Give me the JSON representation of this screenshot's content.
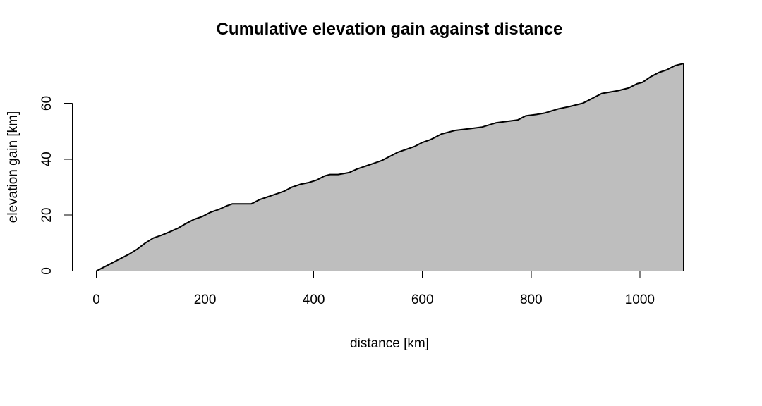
{
  "chart_data": {
    "type": "area",
    "title": "Cumulative elevation gain against distance",
    "xlabel": "distance [km]",
    "ylabel": "elevation gain [km]",
    "xlim": [
      0,
      1080
    ],
    "ylim": [
      0,
      75
    ],
    "x_ticks": [
      0,
      200,
      400,
      600,
      800,
      1000
    ],
    "y_ticks": [
      0,
      20,
      40,
      60
    ],
    "grid": false,
    "fill_color": "#bebebe",
    "line_color": "#000000",
    "x": [
      0,
      15,
      30,
      45,
      60,
      75,
      90,
      105,
      120,
      135,
      150,
      165,
      180,
      195,
      210,
      225,
      240,
      250,
      265,
      285,
      300,
      315,
      330,
      345,
      360,
      375,
      390,
      405,
      420,
      430,
      445,
      465,
      480,
      495,
      510,
      525,
      540,
      555,
      570,
      585,
      600,
      615,
      635,
      660,
      690,
      710,
      735,
      775,
      790,
      810,
      825,
      850,
      870,
      895,
      910,
      930,
      960,
      980,
      995,
      1005,
      1020,
      1035,
      1050,
      1065,
      1080
    ],
    "y": [
      0,
      1.5,
      3,
      4.5,
      6,
      7.8,
      10,
      11.8,
      12.8,
      14,
      15.3,
      17,
      18.5,
      19.5,
      21,
      22,
      23.3,
      24,
      24,
      24,
      25.5,
      26.5,
      27.5,
      28.5,
      30,
      31,
      31.6,
      32.5,
      34,
      34.5,
      34.5,
      35.2,
      36.5,
      37.5,
      38.5,
      39.5,
      41,
      42.5,
      43.5,
      44.5,
      46,
      47,
      49,
      50.3,
      51,
      51.5,
      53,
      54,
      55.5,
      56,
      56.5,
      58,
      58.8,
      60,
      61.5,
      63.5,
      64.5,
      65.5,
      67,
      67.5,
      69.5,
      71,
      72,
      73.5,
      74.2
    ]
  }
}
